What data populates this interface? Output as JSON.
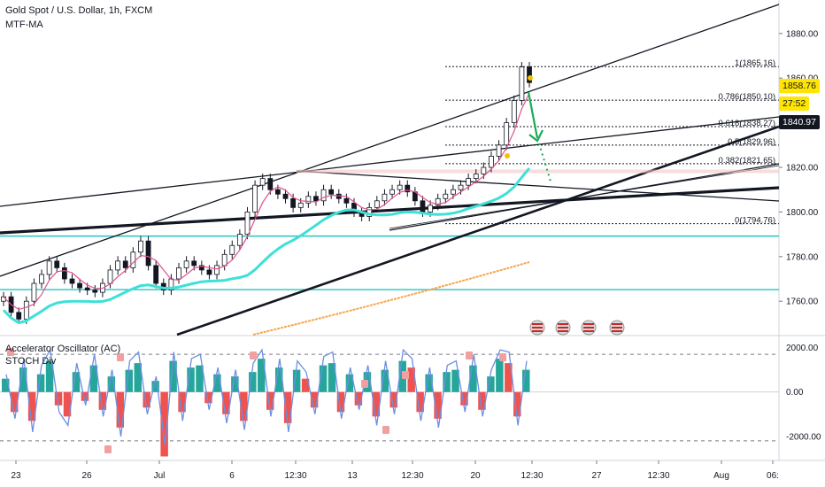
{
  "header": {
    "symbol_title": "Gold Spot / U.S. Dollar, 1h, FXCM",
    "indicator_main": "MTF-MA",
    "osc_title": "Accelerator Oscillator (AC)",
    "osc_sub": "STOCH Div"
  },
  "price_badges": [
    {
      "value": "1858.76",
      "bg": "#ffe500",
      "fg": "#131722"
    },
    {
      "value": "27:52",
      "bg": "#ffe500",
      "fg": "#131722"
    },
    {
      "value": "1840.97",
      "bg": "#131722",
      "fg": "#ffffff"
    }
  ],
  "colors": {
    "candle": "#131722",
    "ma_pink": "#e0508c",
    "ma_cyan": "#3fe0d8",
    "ma_orange": "#f7a44a",
    "ac_up": "#26a69a",
    "ac_down": "#ef5350",
    "stoch": "#6d8fe0",
    "hline": "#27c4c4",
    "arrow": "#1aab56"
  },
  "chart_data": [
    {
      "type": "line",
      "title": "Gold Spot / U.S. Dollar, 1h, FXCM",
      "y_ticks": [
        "1880.00",
        "1860.00",
        "1840.00",
        "1820.00",
        "1800.00",
        "1780.00",
        "1760.00"
      ],
      "ylim": [
        1745,
        1895
      ],
      "x_ticks": [
        "23",
        "26",
        "Jul",
        "6",
        "12:30",
        "13",
        "12:30",
        "20",
        "12:30",
        "27",
        "12:30",
        "Aug",
        "06:"
      ],
      "fib_levels": [
        {
          "label": "1(1865.16)",
          "value": 1865.16
        },
        {
          "label": "0.786(1850.10)",
          "value": 1850.1
        },
        {
          "label": "0.618(1838.27)",
          "value": 1838.27
        },
        {
          "label": "0.5(1829.96)",
          "value": 1829.96
        },
        {
          "label": "0.382(1821.65)",
          "value": 1821.65
        },
        {
          "label": "0(1794.76)",
          "value": 1794.76
        }
      ],
      "horizontal_levels": [
        1789.2,
        1765.2
      ],
      "close_series": [
        1762,
        1755,
        1752,
        1760,
        1768,
        1772,
        1778,
        1775,
        1770,
        1768,
        1766,
        1765,
        1764,
        1768,
        1774,
        1778,
        1775,
        1782,
        1787,
        1776,
        1768,
        1765,
        1770,
        1775,
        1778,
        1776,
        1774,
        1772,
        1776,
        1781,
        1785,
        1790,
        1800,
        1812,
        1815,
        1810,
        1808,
        1806,
        1802,
        1804,
        1807,
        1805,
        1810,
        1808,
        1806,
        1804,
        1800,
        1798,
        1802,
        1805,
        1808,
        1810,
        1812,
        1809,
        1805,
        1800,
        1803,
        1806,
        1808,
        1810,
        1812,
        1815,
        1817,
        1820,
        1825,
        1830,
        1840,
        1850,
        1865,
        1858
      ]
    },
    {
      "type": "bar",
      "title": "Accelerator Oscillator (AC)",
      "y_ticks": [
        "2000.00",
        "0.00",
        "-2000.00"
      ],
      "ylim": [
        -3000,
        2500
      ],
      "dashed_levels": [
        1700,
        -2200
      ],
      "series": [
        {
          "values": [
            600,
            -900,
            1100,
            -1300,
            800,
            1400,
            -600,
            -1100,
            900,
            -400,
            1200,
            -800,
            700,
            -1600,
            1000,
            1300,
            -700,
            500,
            -2900,
            1400,
            -900,
            1100,
            1200,
            -500,
            800,
            -1000,
            700,
            -1300,
            900,
            1500,
            -800,
            1100,
            -1400,
            1000,
            600,
            -700,
            1200,
            1300,
            -900,
            800,
            -600,
            900,
            -1100,
            1000,
            -700,
            1400,
            1100,
            -900,
            800,
            -1200,
            900,
            1000,
            -600,
            1200,
            -800,
            700,
            1500,
            1300,
            -1100,
            1000
          ]
        },
        {
          "values": [
            800,
            -1200,
            1500,
            -1800,
            1200,
            1900,
            -900,
            -1500,
            1300,
            -600,
            1700,
            -1100,
            1000,
            -2000,
            1400,
            1800,
            -1000,
            700,
            -2400,
            1800,
            -1300,
            1500,
            1700,
            -800,
            1100,
            -1400,
            1000,
            -1700,
            1300,
            1900,
            -1100,
            1500,
            -1800,
            1400,
            900,
            -1000,
            1600,
            1800,
            -1200,
            1100,
            -800,
            1200,
            -1500,
            1400,
            -1000,
            1900,
            1500,
            -1300,
            1100,
            -1600,
            1200,
            1400,
            -900,
            1700,
            -1100,
            1000,
            1900,
            1800,
            -1500,
            1400
          ]
        }
      ]
    }
  ]
}
